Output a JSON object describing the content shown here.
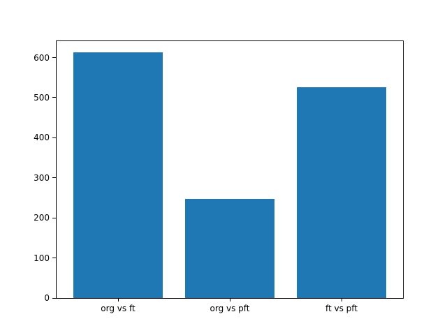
{
  "chart_data": {
    "type": "bar",
    "categories": [
      "org vs ft",
      "org vs pft",
      "ft vs pft"
    ],
    "values": [
      613,
      247,
      526
    ],
    "title": "",
    "xlabel": "",
    "ylabel": "",
    "ylim": [
      0,
      641
    ],
    "yticks": [
      0,
      100,
      200,
      300,
      400,
      500,
      600
    ],
    "bar_color": "#1f77b4",
    "spine_color": "#000000",
    "background_color": "#ffffff",
    "grid": false,
    "legend": null,
    "bar_width_fraction": 0.8
  }
}
